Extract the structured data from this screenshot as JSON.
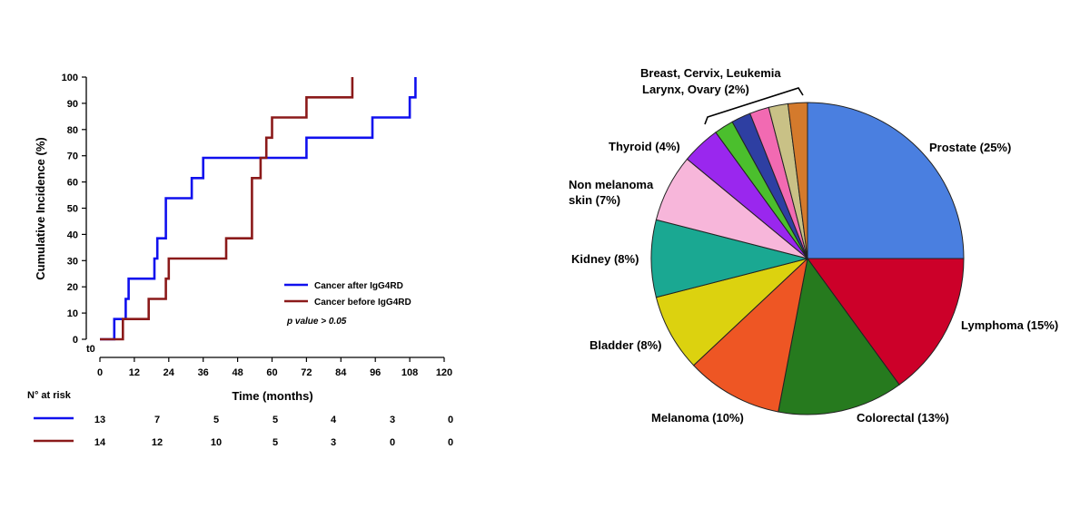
{
  "chart_data": [
    {
      "type": "line",
      "step": true,
      "xlabel": "Time (months)",
      "ylabel": "Cumulative Incidence (%)",
      "xlim": [
        0,
        120
      ],
      "ylim": [
        0,
        100
      ],
      "x_ticks": [
        0,
        12,
        24,
        36,
        48,
        60,
        72,
        84,
        96,
        108,
        120
      ],
      "y_ticks": [
        0,
        10,
        20,
        30,
        40,
        50,
        60,
        70,
        80,
        90,
        100
      ],
      "origin_label": "t0",
      "p_value_text": "p value > 0.05",
      "series": [
        {
          "name": "Cancer after IgG4RD",
          "color": "#1010ee",
          "points": [
            [
              0,
              0
            ],
            [
              5,
              0
            ],
            [
              5,
              7.7
            ],
            [
              9,
              7.7
            ],
            [
              9,
              15.4
            ],
            [
              10,
              15.4
            ],
            [
              10,
              23.1
            ],
            [
              19,
              23.1
            ],
            [
              19,
              30.8
            ],
            [
              20,
              30.8
            ],
            [
              20,
              38.5
            ],
            [
              23,
              38.5
            ],
            [
              23,
              53.8
            ],
            [
              32,
              53.8
            ],
            [
              32,
              61.5
            ],
            [
              36,
              61.5
            ],
            [
              36,
              69.2
            ],
            [
              72,
              69.2
            ],
            [
              72,
              76.9
            ],
            [
              95,
              76.9
            ],
            [
              95,
              84.6
            ],
            [
              108,
              84.6
            ],
            [
              108,
              92.3
            ],
            [
              110,
              92.3
            ],
            [
              110,
              100
            ]
          ]
        },
        {
          "name": "Cancer before IgG4RD",
          "color": "#8b1a1a",
          "points": [
            [
              0,
              0
            ],
            [
              8,
              0
            ],
            [
              8,
              7.7
            ],
            [
              17,
              7.7
            ],
            [
              17,
              15.4
            ],
            [
              23,
              15.4
            ],
            [
              23,
              23.1
            ],
            [
              24,
              23.1
            ],
            [
              24,
              30.8
            ],
            [
              44,
              30.8
            ],
            [
              44,
              38.5
            ],
            [
              53,
              38.5
            ],
            [
              53,
              61.5
            ],
            [
              56,
              61.5
            ],
            [
              56,
              69.2
            ],
            [
              58,
              69.2
            ],
            [
              58,
              76.9
            ],
            [
              60,
              76.9
            ],
            [
              60,
              84.6
            ],
            [
              72,
              84.6
            ],
            [
              72,
              92.3
            ],
            [
              88,
              92.3
            ],
            [
              88,
              100
            ]
          ]
        }
      ],
      "risk_table": {
        "header": "N° at risk",
        "rows": [
          {
            "color": "#1010ee",
            "values": [
              "13",
              "7",
              "5",
              "5",
              "4",
              "3",
              "0"
            ]
          },
          {
            "color": "#8b1a1a",
            "values": [
              "14",
              "12",
              "10",
              "5",
              "3",
              "0",
              "0"
            ]
          }
        ]
      }
    },
    {
      "type": "pie",
      "slices": [
        {
          "label": "Prostate (25%)",
          "value": 25,
          "color": "#4a7fe0"
        },
        {
          "label": "Lymphoma (15%)",
          "value": 15,
          "color": "#cc0029"
        },
        {
          "label": "Colorectal (13%)",
          "value": 13,
          "color": "#267a1e"
        },
        {
          "label": "Melanoma (10%)",
          "value": 10,
          "color": "#ee5624"
        },
        {
          "label": "Bladder (8%)",
          "value": 8,
          "color": "#dcd20f"
        },
        {
          "label": "Kidney (8%)",
          "value": 8,
          "color": "#1aa892"
        },
        {
          "label": "Non melanoma skin (7%)",
          "value": 7,
          "color": "#f7b6da"
        },
        {
          "label": "Thyroid (4%)",
          "value": 4,
          "color": "#9a27ee"
        },
        {
          "label": "",
          "value": 2,
          "color": "#4bbf2d"
        },
        {
          "label": "",
          "value": 2,
          "color": "#2e3fa2"
        },
        {
          "label": "",
          "value": 2,
          "color": "#f26ab2"
        },
        {
          "label": "",
          "value": 2,
          "color": "#c9c186"
        },
        {
          "label": "",
          "value": 2,
          "color": "#d47a2c"
        }
      ],
      "group_label": [
        "Breast, Cervix, Leukemia",
        "Larynx, Ovary (2%)"
      ]
    }
  ]
}
